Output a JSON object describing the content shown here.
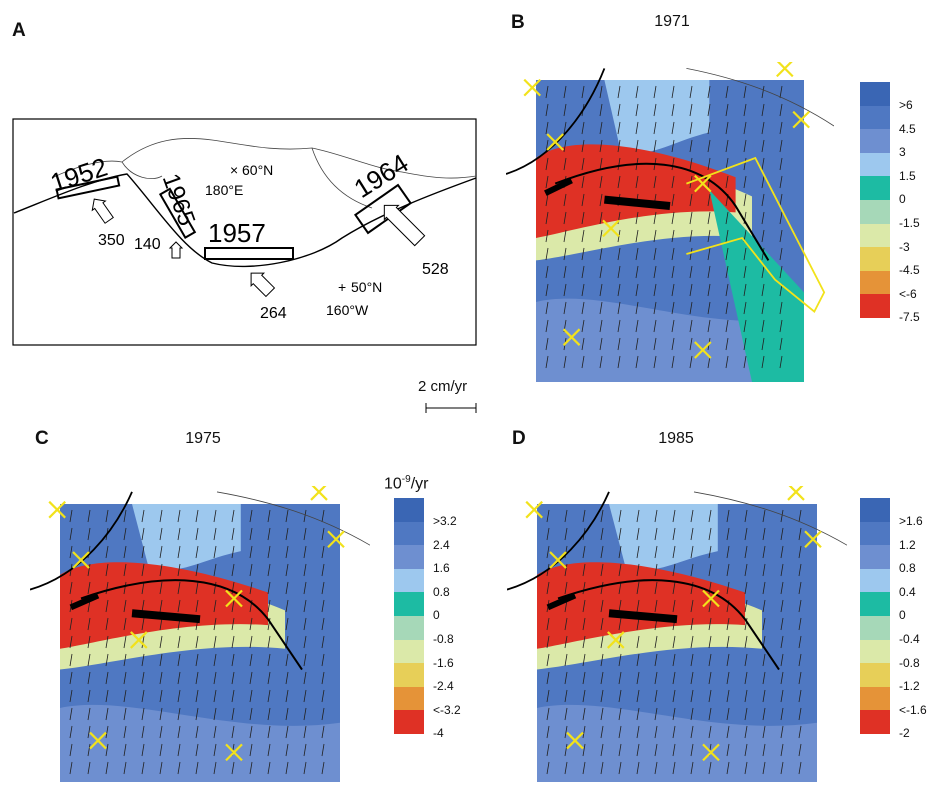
{
  "panels": {
    "A": {
      "label": "A",
      "years": [
        "1952",
        "1965",
        "1957",
        "1964"
      ],
      "arrows": [
        "350",
        "140",
        "264",
        "528"
      ],
      "coords": [
        "60°N",
        "180°E",
        "50°N",
        "160°W"
      ]
    },
    "B": {
      "label": "B",
      "title": "1971",
      "colorbar": [
        ">6",
        "4.5",
        "3",
        "1.5",
        "0",
        "-1.5",
        "-3",
        "-4.5",
        "<-6",
        "-7.5"
      ]
    },
    "C": {
      "label": "C",
      "title": "1975",
      "colorbar": [
        ">3.2",
        "2.4",
        "1.6",
        "0.8",
        "0",
        "-0.8",
        "-1.6",
        "-2.4",
        "<-3.2",
        "-4"
      ]
    },
    "D": {
      "label": "D",
      "title": "1985",
      "colorbar": [
        ">1.6",
        "1.2",
        "0.8",
        "0.4",
        "0",
        "-0.4",
        "-0.8",
        "-1.2",
        "<-1.6",
        "-2"
      ]
    }
  },
  "unit_label": "10-9/yr",
  "unit_base": "10",
  "unit_exp": "-9",
  "unit_suffix": "/yr",
  "scale_label": "2 cm/yr",
  "colors": [
    "#3a66b4",
    "#4f78c2",
    "#6e8fd0",
    "#9dc8ee",
    "#1dbba3",
    "#a6d8b8",
    "#dbe9a9",
    "#e7cf58",
    "#e59338",
    "#df3125"
  ]
}
